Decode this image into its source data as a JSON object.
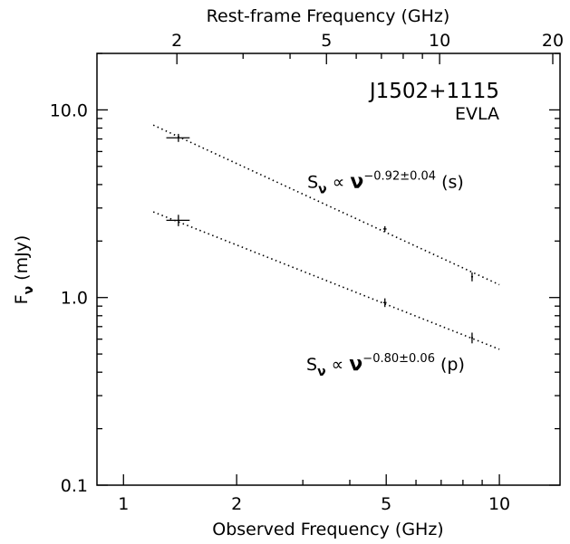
{
  "chart_data": {
    "type": "scatter",
    "xlabel_main": "Observed Frequency (GHz)",
    "xlabel_sub": "",
    "ylabel_main": "F",
    "ylabel_sub": "ν",
    "ylabel_tail": " (mJy)",
    "top_axis_label": "Rest-frame Frequency (GHz)",
    "xscale": "log",
    "yscale": "log",
    "xlim": [
      0.85,
      14.5
    ],
    "ylim": [
      0.1,
      20
    ],
    "x_ticks": [
      {
        "value": 1,
        "label": "1"
      },
      {
        "value": 2,
        "label": "2"
      },
      {
        "value": 5,
        "label": "5"
      },
      {
        "value": 10,
        "label": "10"
      }
    ],
    "y_ticks": [
      {
        "value": 0.1,
        "label": "0.1"
      },
      {
        "value": 1,
        "label": "1.0"
      },
      {
        "value": 10,
        "label": "10.0"
      }
    ],
    "top_ticks": [
      {
        "value": 2,
        "label": "2"
      },
      {
        "value": 5,
        "label": "5"
      },
      {
        "value": 10,
        "label": "10"
      },
      {
        "value": 20,
        "label": "20"
      }
    ],
    "restframe_factor": 1.442,
    "annotation_title": "J1502+1115",
    "annotation_sub": "EVLA",
    "series": [
      {
        "id": "s",
        "label_prefix": "S",
        "label_sub": "ν",
        "label_mid": " ∝ ",
        "label_nu": "ν",
        "label_exp": "−0.92±0.04",
        "label_tag": " (s)",
        "label_at": [
          4.98,
          3.85
        ],
        "fit": {
          "x": [
            1.2,
            10.0
          ],
          "y": [
            8.3,
            1.17
          ]
        },
        "points": [
          {
            "x": 1.4,
            "y": 7.1,
            "xerr": 0.1,
            "yerr": 0.35
          },
          {
            "x": 4.96,
            "y": 2.32,
            "xerr": 0.05,
            "yerr": 0.08
          },
          {
            "x": 8.46,
            "y": 1.29,
            "xerr": 0.05,
            "yerr": 0.07
          }
        ]
      },
      {
        "id": "p",
        "label_prefix": "S",
        "label_sub": "ν",
        "label_mid": " ∝ ",
        "label_nu": "ν",
        "label_exp": "−0.80±0.06",
        "label_tag": " (p)",
        "label_at": [
          4.98,
          0.41
        ],
        "fit": {
          "x": [
            1.2,
            10.0
          ],
          "y": [
            2.86,
            0.53
          ]
        },
        "points": [
          {
            "x": 1.4,
            "y": 2.58,
            "xerr": 0.1,
            "yerr": 0.18
          },
          {
            "x": 4.96,
            "y": 0.94,
            "xerr": 0.05,
            "yerr": 0.05
          },
          {
            "x": 8.46,
            "y": 0.61,
            "xerr": 0.05,
            "yerr": 0.04
          }
        ]
      }
    ]
  }
}
